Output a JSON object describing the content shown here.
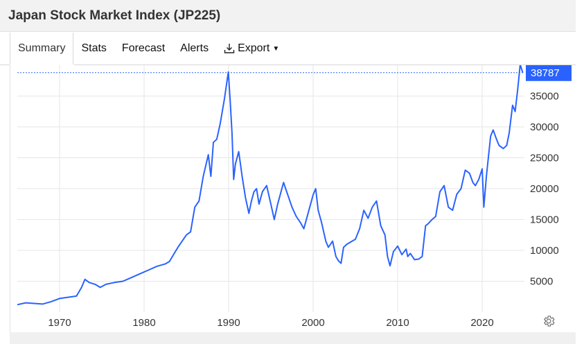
{
  "header": {
    "title": "Japan Stock Market Index (JP225)"
  },
  "tabs": [
    {
      "label": "Summary",
      "active": true
    },
    {
      "label": "Stats"
    },
    {
      "label": "Forecast"
    },
    {
      "label": "Alerts"
    },
    {
      "label": "Export",
      "icon": "download-icon"
    }
  ],
  "colors": {
    "line": "#2962ff",
    "label_bg": "#2962ff",
    "grid": "#e6e6e6"
  },
  "chart_data": {
    "type": "line",
    "title": "Japan Stock Market Index (JP225)",
    "xlabel": "",
    "ylabel": "",
    "xlim": [
      1965.0,
      2025.0
    ],
    "ylim": [
      0,
      40000
    ],
    "x_ticks": [
      1970,
      1980,
      1990,
      2000,
      2010,
      2020
    ],
    "x_tick_labels": [
      "1970",
      "1980",
      "1990",
      "2000",
      "2010",
      "2020"
    ],
    "y_ticks": [
      5000,
      10000,
      15000,
      20000,
      25000,
      30000,
      35000
    ],
    "y_tick_labels": [
      "5000",
      "10000",
      "15000",
      "20000",
      "25000",
      "30000",
      "35000"
    ],
    "grid": true,
    "last_value": 38787,
    "last_value_label": "38787",
    "series": [
      {
        "name": "",
        "x": [
          1965.0,
          1966.0,
          1967.0,
          1968.0,
          1969.0,
          1970.0,
          1971.0,
          1972.0,
          1972.6,
          1973.0,
          1973.5,
          1974.2,
          1974.8,
          1975.5,
          1976.5,
          1977.5,
          1978.5,
          1979.5,
          1980.5,
          1981.5,
          1982.5,
          1983.0,
          1984.0,
          1985.0,
          1985.5,
          1986.0,
          1986.5,
          1987.0,
          1987.6,
          1987.9,
          1988.2,
          1988.6,
          1989.0,
          1989.5,
          1989.97,
          1990.2,
          1990.4,
          1990.6,
          1990.8,
          1991.2,
          1991.6,
          1992.0,
          1992.4,
          1992.7,
          1993.0,
          1993.3,
          1993.6,
          1994.0,
          1994.5,
          1995.0,
          1995.4,
          1995.8,
          1996.5,
          1997.0,
          1997.5,
          1998.0,
          1998.5,
          1998.9,
          1999.5,
          2000.0,
          2000.3,
          2000.6,
          2001.0,
          2001.5,
          2001.8,
          2002.3,
          2002.7,
          2003.0,
          2003.3,
          2003.6,
          2004.0,
          2004.5,
          2005.0,
          2005.5,
          2006.0,
          2006.5,
          2007.0,
          2007.5,
          2008.0,
          2008.5,
          2008.8,
          2009.1,
          2009.5,
          2010.0,
          2010.5,
          2011.0,
          2011.2,
          2011.5,
          2012.0,
          2012.5,
          2012.9,
          2013.3,
          2013.6,
          2014.0,
          2014.5,
          2015.0,
          2015.5,
          2016.0,
          2016.5,
          2017.0,
          2017.5,
          2018.0,
          2018.5,
          2018.9,
          2019.2,
          2019.6,
          2020.0,
          2020.2,
          2020.5,
          2021.0,
          2021.3,
          2021.7,
          2022.0,
          2022.5,
          2022.9,
          2023.2,
          2023.6,
          2023.9,
          2024.2,
          2024.5,
          2024.8
        ],
        "y": [
          1200,
          1500,
          1400,
          1300,
          1700,
          2200,
          2400,
          2600,
          4000,
          5300,
          4800,
          4500,
          4000,
          4500,
          4800,
          5000,
          5600,
          6200,
          6800,
          7400,
          7800,
          8200,
          10500,
          12500,
          13000,
          17000,
          18000,
          22000,
          25500,
          22000,
          27500,
          28000,
          30500,
          34500,
          38900,
          34000,
          29000,
          21500,
          24000,
          26000,
          22000,
          18500,
          16000,
          18000,
          19500,
          20000,
          17500,
          19500,
          20500,
          17500,
          15000,
          17500,
          21000,
          19000,
          17000,
          15500,
          14500,
          13500,
          16500,
          19000,
          20000,
          16500,
          14500,
          11500,
          10500,
          11500,
          9000,
          8300,
          7900,
          10500,
          11000,
          11400,
          11800,
          13500,
          16500,
          15200,
          17000,
          18000,
          14000,
          12500,
          9000,
          7500,
          9800,
          10700,
          9300,
          10200,
          9000,
          9500,
          8500,
          8600,
          9000,
          14000,
          14300,
          14900,
          15500,
          19500,
          20500,
          17000,
          16500,
          19100,
          20000,
          23000,
          22500,
          21000,
          20500,
          21500,
          23200,
          17000,
          22000,
          28500,
          29500,
          28000,
          27000,
          26500,
          27000,
          29000,
          33500,
          32500,
          36000,
          40100,
          38787
        ]
      }
    ]
  }
}
